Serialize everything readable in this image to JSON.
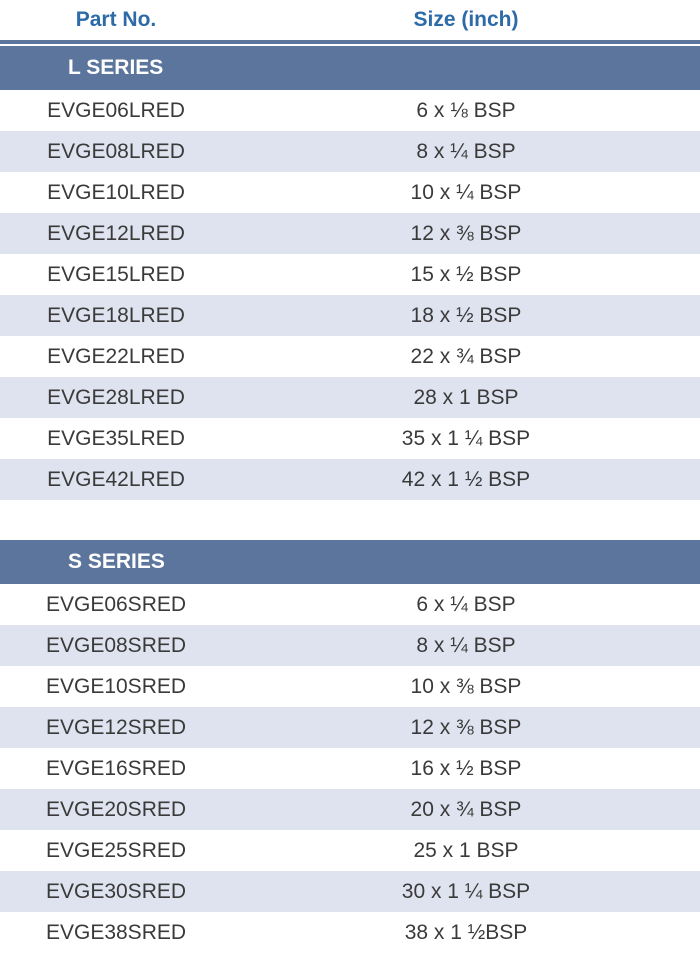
{
  "header": {
    "part_label": "Part No.",
    "size_label": "Size (inch)"
  },
  "l_series": {
    "title": "L SERIES",
    "rows": [
      {
        "part": "EVGE06LRED",
        "size": "6 x ⅛ BSP"
      },
      {
        "part": "EVGE08LRED",
        "size": "8 x ¼ BSP"
      },
      {
        "part": "EVGE10LRED",
        "size": "10 x ¼ BSP"
      },
      {
        "part": "EVGE12LRED",
        "size": "12 x ⅜ BSP"
      },
      {
        "part": "EVGE15LRED",
        "size": "15 x ½ BSP"
      },
      {
        "part": "EVGE18LRED",
        "size": "18 x ½ BSP"
      },
      {
        "part": "EVGE22LRED",
        "size": "22 x ¾ BSP"
      },
      {
        "part": "EVGE28LRED",
        "size": "28 x 1 BSP"
      },
      {
        "part": "EVGE35LRED",
        "size": "35 x 1 ¼ BSP"
      },
      {
        "part": "EVGE42LRED",
        "size": "42 x 1 ½ BSP"
      }
    ]
  },
  "s_series": {
    "title": "S SERIES",
    "rows": [
      {
        "part": "EVGE06SRED",
        "size": "6 x ¼ BSP"
      },
      {
        "part": "EVGE08SRED",
        "size": "8 x ¼ BSP"
      },
      {
        "part": "EVGE10SRED",
        "size": "10 x ⅜ BSP"
      },
      {
        "part": "EVGE12SRED",
        "size": "12 x ⅜ BSP"
      },
      {
        "part": "EVGE16SRED",
        "size": "16 x ½ BSP"
      },
      {
        "part": "EVGE20SRED",
        "size": "20 x ¾ BSP"
      },
      {
        "part": "EVGE25SRED",
        "size": "25 x 1 BSP"
      },
      {
        "part": "EVGE30SRED",
        "size": "30 x 1 ¼  BSP"
      },
      {
        "part": "EVGE38SRED",
        "size": "38 x 1 ½BSP"
      }
    ]
  },
  "colors": {
    "header_text": "#2c6aa8",
    "series_bar": "#5b759d",
    "row_shade": "#dfe3ef"
  }
}
